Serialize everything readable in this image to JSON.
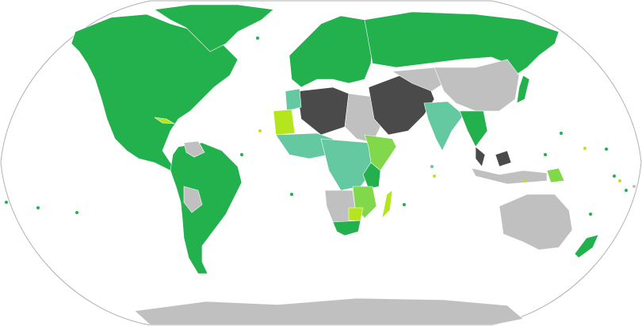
{
  "map": {
    "projection": "robinson",
    "colors": {
      "ocean": "#ffffff",
      "outline": "#b0b0b0",
      "green": "#22b14c",
      "light_green": "#80d84a",
      "yellow_green": "#b5e61d",
      "teal": "#64c8a0",
      "dark_gray": "#4a4a4a",
      "light_gray": "#c0c0c0",
      "border": "#ffffff"
    },
    "regions": [
      {
        "name": "north-america",
        "color": "green"
      },
      {
        "name": "greenland",
        "color": "green"
      },
      {
        "name": "cuba",
        "color": "yellow_green"
      },
      {
        "name": "south-america",
        "color": "green"
      },
      {
        "name": "venezuela",
        "color": "light_gray"
      },
      {
        "name": "bolivia",
        "color": "light_gray"
      },
      {
        "name": "europe",
        "color": "green"
      },
      {
        "name": "russia",
        "color": "green"
      },
      {
        "name": "north-africa",
        "color": "dark_gray"
      },
      {
        "name": "egypt-sudan",
        "color": "light_gray"
      },
      {
        "name": "morocco",
        "color": "teal"
      },
      {
        "name": "mauritania",
        "color": "yellow_green"
      },
      {
        "name": "west-africa",
        "color": "teal"
      },
      {
        "name": "central-africa",
        "color": "teal"
      },
      {
        "name": "horn-of-africa",
        "color": "light_green"
      },
      {
        "name": "east-africa",
        "color": "green"
      },
      {
        "name": "tanzania-mozambique",
        "color": "light_green"
      },
      {
        "name": "southern-africa",
        "color": "light_gray"
      },
      {
        "name": "south-africa",
        "color": "green"
      },
      {
        "name": "madagascar",
        "color": "yellow_green"
      },
      {
        "name": "zimbabwe",
        "color": "yellow_green"
      },
      {
        "name": "middle-east",
        "color": "dark_gray"
      },
      {
        "name": "central-asia",
        "color": "light_gray"
      },
      {
        "name": "india",
        "color": "teal"
      },
      {
        "name": "china",
        "color": "light_gray"
      },
      {
        "name": "southeast-asia",
        "color": "green"
      },
      {
        "name": "malaysia",
        "color": "dark_gray"
      },
      {
        "name": "japan",
        "color": "green"
      },
      {
        "name": "indonesia",
        "color": "light_gray"
      },
      {
        "name": "papua-new-guinea",
        "color": "light_green"
      },
      {
        "name": "australia",
        "color": "light_gray"
      },
      {
        "name": "new-zealand",
        "color": "green"
      },
      {
        "name": "antarctica",
        "color": "light_gray"
      }
    ]
  }
}
